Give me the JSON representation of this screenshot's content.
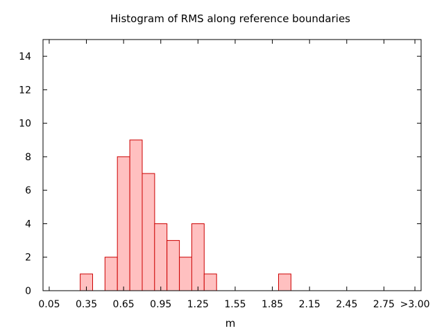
{
  "chart_data": {
    "type": "bar",
    "title": "Histogram of RMS along reference boundaries",
    "xlabel": "m",
    "ylabel": "",
    "xlim": [
      0.0,
      3.05
    ],
    "ylim": [
      0,
      15
    ],
    "grid": false,
    "colors": {
      "bar_fill": "#ffc0c0",
      "bar_stroke": "#cc0000",
      "axis": "#000000"
    },
    "x_ticks": [
      {
        "value": 0.05,
        "label": "0.05"
      },
      {
        "value": 0.35,
        "label": "0.35"
      },
      {
        "value": 0.65,
        "label": "0.65"
      },
      {
        "value": 0.95,
        "label": "0.95"
      },
      {
        "value": 1.25,
        "label": "1.25"
      },
      {
        "value": 1.55,
        "label": "1.55"
      },
      {
        "value": 1.85,
        "label": "1.85"
      },
      {
        "value": 2.15,
        "label": "2.15"
      },
      {
        "value": 2.45,
        "label": "2.45"
      },
      {
        "value": 2.75,
        "label": "2.75"
      },
      {
        "value": 3.0,
        "label": ">3.00"
      }
    ],
    "y_ticks": [
      0,
      2,
      4,
      6,
      8,
      10,
      12,
      14
    ],
    "bin_width": 0.1,
    "bins": [
      {
        "start": 0.3,
        "count": 1
      },
      {
        "start": 0.5,
        "count": 2
      },
      {
        "start": 0.6,
        "count": 8
      },
      {
        "start": 0.7,
        "count": 9
      },
      {
        "start": 0.8,
        "count": 7
      },
      {
        "start": 0.9,
        "count": 4
      },
      {
        "start": 1.0,
        "count": 3
      },
      {
        "start": 1.1,
        "count": 2
      },
      {
        "start": 1.2,
        "count": 4
      },
      {
        "start": 1.3,
        "count": 1
      },
      {
        "start": 1.9,
        "count": 1
      }
    ]
  }
}
